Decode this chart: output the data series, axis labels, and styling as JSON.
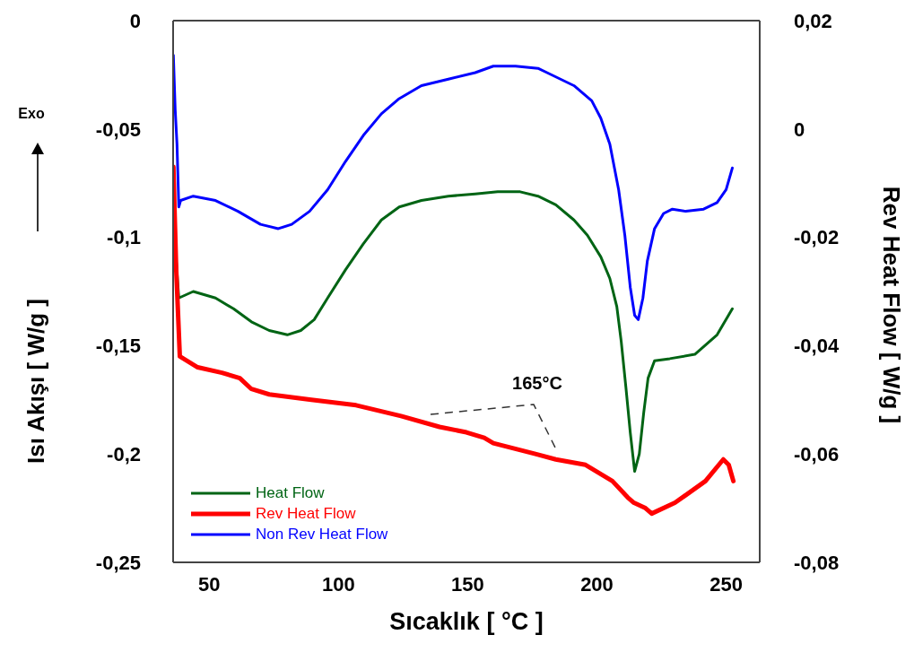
{
  "chart_data": {
    "type": "line",
    "xlabel": "Sıcaklık [ °C ]",
    "ylabel": "Isı Akışı [ W/g ]",
    "y2label": "Rev Heat Flow [ W/g ]",
    "annotations": [
      "Exo",
      "165°C"
    ],
    "xlim": [
      36,
      263
    ],
    "xticks": [
      50,
      100,
      150,
      200,
      250
    ],
    "ylim": [
      -0.25,
      0
    ],
    "yticks": [
      {
        "value": -0.25,
        "label": "-0,25"
      },
      {
        "value": -0.2,
        "label": "-0,2"
      },
      {
        "value": -0.15,
        "label": "-0,15"
      },
      {
        "value": -0.1,
        "label": "-0,1"
      },
      {
        "value": -0.05,
        "label": "-0,05"
      },
      0
    ],
    "y2lim": [
      -0.08,
      0.02
    ],
    "y2ticks": [
      {
        "value": -0.08,
        "label": "-0,08"
      },
      {
        "value": -0.06,
        "label": "-0,06"
      },
      {
        "value": -0.04,
        "label": "-0,04"
      },
      {
        "value": -0.02,
        "label": "-0,02"
      },
      0,
      {
        "value": 0.02,
        "label": "0,02"
      }
    ],
    "legend": "bottom left",
    "marker": "none",
    "line_style": "solid",
    "series": [
      {
        "name": "Heat Flow",
        "color": "#006414",
        "x": [
          37.2,
          38.2,
          43.8,
          52.4,
          59.4,
          66.3,
          73.2,
          80.2,
          85.4,
          90.6,
          95.8,
          102.7,
          109.6,
          116.6,
          123.5,
          132.1,
          142.5,
          152.9,
          161.6,
          170.3,
          177.2,
          184.1,
          191.1,
          196.3,
          201.5,
          205,
          207.7,
          209.4,
          211.2,
          212.9,
          214.6,
          216.4,
          218.1,
          219.8,
          222.3,
          228.2,
          237.9,
          246.5,
          252.4
        ],
        "values": [
          -0.111,
          -0.128,
          -0.125,
          -0.128,
          -0.133,
          -0.139,
          -0.143,
          -0.145,
          -0.143,
          -0.138,
          -0.128,
          -0.115,
          -0.103,
          -0.092,
          -0.086,
          -0.083,
          -0.081,
          -0.08,
          -0.079,
          -0.079,
          -0.081,
          -0.085,
          -0.092,
          -0.099,
          -0.109,
          -0.119,
          -0.132,
          -0.148,
          -0.169,
          -0.19,
          -0.208,
          -0.2,
          -0.181,
          -0.165,
          -0.157,
          -0.156,
          -0.154,
          -0.145,
          -0.133
        ]
      },
      {
        "name": "Rev Heat Flow",
        "color": "#ff0000",
        "axis": "y2",
        "x": [
          36.1,
          37.2,
          37.9,
          38.6,
          45.5,
          54.9,
          61.8,
          66.3,
          73.2,
          89.5,
          106.8,
          124.2,
          139.1,
          149.5,
          156.4,
          159.9,
          176.2,
          184.1,
          195.6,
          206,
          211.9,
          214.3,
          218.8,
          221.2,
          230.2,
          242,
          248.9,
          251,
          252.8
        ],
        "values": [
          -0.007,
          -0.026,
          -0.034,
          -0.042,
          -0.044,
          -0.045,
          -0.046,
          -0.048,
          -0.049,
          -0.05,
          -0.051,
          -0.053,
          -0.055,
          -0.056,
          -0.057,
          -0.058,
          -0.06,
          -0.061,
          -0.062,
          -0.065,
          -0.068,
          -0.069,
          -0.07,
          -0.071,
          -0.069,
          -0.065,
          -0.061,
          -0.062,
          -0.065
        ]
      },
      {
        "name": "Non Rev Heat Flow",
        "color": "#0000ff",
        "x": [
          36.1,
          36.8,
          37.5,
          38.2,
          38.9,
          43.8,
          52.4,
          61.1,
          69.8,
          76.7,
          81.9,
          88.8,
          95.8,
          102.7,
          109.6,
          116.6,
          123.5,
          132.1,
          142.5,
          152.9,
          159.9,
          168.5,
          177.2,
          180.7,
          191.1,
          198,
          201.5,
          205,
          208.4,
          210.8,
          212.9,
          214.6,
          216,
          217.8,
          219.5,
          222.3,
          225.8,
          229.2,
          234.4,
          241.3,
          246.5,
          250,
          252.4
        ],
        "values": [
          -0.016,
          -0.041,
          -0.057,
          -0.086,
          -0.083,
          -0.081,
          -0.083,
          -0.088,
          -0.094,
          -0.096,
          -0.094,
          -0.088,
          -0.078,
          -0.065,
          -0.053,
          -0.043,
          -0.036,
          -0.03,
          -0.027,
          -0.024,
          -0.021,
          -0.021,
          -0.022,
          -0.024,
          -0.03,
          -0.037,
          -0.045,
          -0.057,
          -0.078,
          -0.099,
          -0.123,
          -0.136,
          -0.138,
          -0.128,
          -0.111,
          -0.096,
          -0.089,
          -0.087,
          -0.088,
          -0.087,
          -0.084,
          -0.078,
          -0.068
        ]
      }
    ]
  }
}
